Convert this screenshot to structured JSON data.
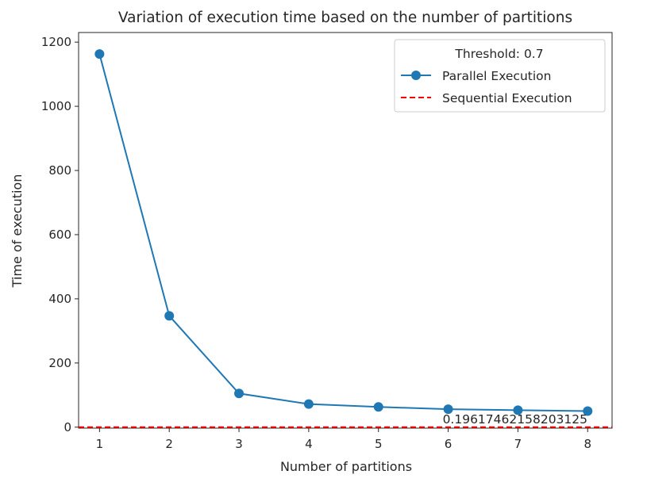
{
  "chart_data": {
    "type": "line",
    "title": "Variation of execution time based on the number of partitions",
    "xlabel": "Number of partitions",
    "ylabel": "Time of execution",
    "x": [
      1,
      2,
      3,
      4,
      5,
      6,
      7,
      8
    ],
    "xlim": [
      0.7,
      8.35
    ],
    "ylim": [
      -3,
      1230
    ],
    "xticks": [
      1,
      2,
      3,
      4,
      5,
      6,
      7,
      8
    ],
    "yticks": [
      0,
      200,
      400,
      600,
      800,
      1000,
      1200
    ],
    "series": [
      {
        "name": "Parallel Execution",
        "style": "line-with-markers",
        "color": "#1f77b4",
        "values": [
          1163,
          347,
          105,
          72,
          63,
          56,
          53,
          50
        ]
      },
      {
        "name": "Sequential Execution",
        "style": "dashed-horizontal",
        "color": "#ff0000",
        "value": 0.19617462158203125
      }
    ],
    "legend": {
      "title": "Threshold: 0.7",
      "placement": "top-right"
    },
    "annotation": {
      "text": "0.19617462158203125",
      "x": 8,
      "y": 0.19617462158203125
    },
    "grid": false
  }
}
